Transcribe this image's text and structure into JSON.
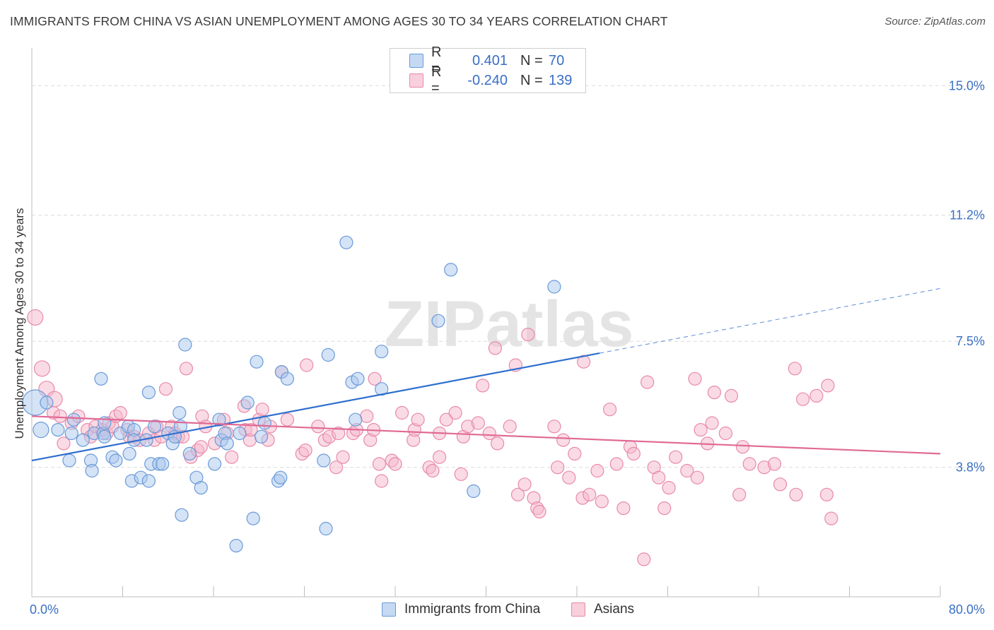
{
  "title": "IMMIGRANTS FROM CHINA VS ASIAN UNEMPLOYMENT AMONG AGES 30 TO 34 YEARS CORRELATION CHART",
  "source": "Source: ZipAtlas.com",
  "watermark": "ZIPatlas",
  "colors": {
    "blue_fill": "#a9c8ee",
    "blue_stroke": "#6a9ad8",
    "blue_line": "#2f6fce",
    "pink_fill": "#f5b8cb",
    "pink_stroke": "#e88aa8",
    "pink_line": "#e06a95",
    "axis_label": "#3a6fc4",
    "grid": "#dcdcdc"
  },
  "legend": {
    "rows": [
      {
        "r_label": "R =",
        "r_value": "0.401",
        "n_label": "N =",
        "n_value": "70",
        "color": "#a9c8ee",
        "border": "#6a9ad8"
      },
      {
        "r_label": "R =",
        "r_value": "-0.240",
        "n_label": "N =",
        "n_value": "139",
        "color": "#f5b8cb",
        "border": "#e88aa8"
      }
    ]
  },
  "bottom_legend": [
    {
      "label": "Immigrants from China",
      "color": "#a9c8ee",
      "border": "#6a9ad8"
    },
    {
      "label": "Asians",
      "color": "#f5b8cb",
      "border": "#e88aa8"
    }
  ],
  "chart_data": {
    "type": "scatter",
    "title": "IMMIGRANTS FROM CHINA VS ASIAN UNEMPLOYMENT AMONG AGES 30 TO 34 YEARS CORRELATION CHART",
    "xlabel": "",
    "ylabel": "Unemployment Among Ages 30 to 34 years",
    "xlim": [
      0,
      80
    ],
    "ylim": [
      0,
      15.9
    ],
    "x_tick_labels": [
      "0.0%",
      "80.0%"
    ],
    "y_ticks": [
      3.8,
      7.5,
      11.2,
      15.0
    ],
    "y_tick_labels": [
      "3.8%",
      "7.5%",
      "11.2%",
      "15.0%"
    ],
    "series": [
      {
        "name": "Immigrants from China",
        "r": 0.401,
        "n": 70,
        "trend": {
          "x0": 0,
          "y0": 4.0,
          "x1": 50,
          "y1": 7.15,
          "x_dash_end": 80,
          "y_dash_end": 9.05
        },
        "points": [
          [
            0.3,
            5.7,
            18
          ],
          [
            0.8,
            4.9,
            11
          ],
          [
            1.3,
            5.7,
            9
          ],
          [
            2.3,
            4.9,
            9
          ],
          [
            3.3,
            4.0,
            9
          ],
          [
            3.5,
            4.8,
            9
          ],
          [
            3.7,
            5.2,
            9
          ],
          [
            4.5,
            4.6,
            9
          ],
          [
            5.2,
            4.0,
            9
          ],
          [
            5.3,
            3.7,
            9
          ],
          [
            5.5,
            4.8,
            9
          ],
          [
            6.1,
            6.4,
            9
          ],
          [
            6.3,
            4.8,
            9
          ],
          [
            6.4,
            5.1,
            9
          ],
          [
            6.4,
            4.7,
            9
          ],
          [
            7.1,
            4.1,
            9
          ],
          [
            7.4,
            4.0,
            9
          ],
          [
            7.8,
            4.8,
            9
          ],
          [
            8.5,
            5.0,
            9
          ],
          [
            8.6,
            4.2,
            9
          ],
          [
            8.8,
            3.4,
            9
          ],
          [
            9.0,
            4.9,
            9
          ],
          [
            9.0,
            4.6,
            9
          ],
          [
            9.6,
            3.5,
            9
          ],
          [
            10.1,
            4.6,
            9
          ],
          [
            10.3,
            3.4,
            9
          ],
          [
            10.3,
            6.0,
            9
          ],
          [
            10.5,
            3.9,
            9
          ],
          [
            10.8,
            5.0,
            9
          ],
          [
            11.2,
            3.9,
            9
          ],
          [
            11.5,
            3.9,
            9
          ],
          [
            12.0,
            4.8,
            9
          ],
          [
            12.4,
            4.5,
            9
          ],
          [
            12.6,
            4.7,
            9
          ],
          [
            13.0,
            5.4,
            9
          ],
          [
            13.1,
            5.0,
            9
          ],
          [
            13.2,
            2.4,
            9
          ],
          [
            13.5,
            7.4,
            9
          ],
          [
            13.9,
            4.2,
            9
          ],
          [
            14.5,
            3.5,
            9
          ],
          [
            14.9,
            3.2,
            9
          ],
          [
            16.1,
            3.9,
            9
          ],
          [
            16.5,
            5.2,
            9
          ],
          [
            16.7,
            4.6,
            9
          ],
          [
            17.0,
            4.8,
            9
          ],
          [
            17.2,
            4.5,
            9
          ],
          [
            18.0,
            1.5,
            9
          ],
          [
            18.3,
            4.8,
            9
          ],
          [
            19.0,
            5.7,
            9
          ],
          [
            19.5,
            2.3,
            9
          ],
          [
            19.8,
            6.9,
            9
          ],
          [
            20.2,
            4.7,
            9
          ],
          [
            20.5,
            5.1,
            9
          ],
          [
            21.7,
            3.4,
            9
          ],
          [
            21.9,
            3.5,
            9
          ],
          [
            22.0,
            6.6,
            9
          ],
          [
            22.5,
            6.4,
            9
          ],
          [
            25.7,
            4.0,
            9
          ],
          [
            25.9,
            2.0,
            9
          ],
          [
            26.1,
            7.1,
            9
          ],
          [
            27.7,
            10.4,
            9
          ],
          [
            28.2,
            6.3,
            9
          ],
          [
            28.5,
            5.2,
            9
          ],
          [
            28.7,
            6.4,
            9
          ],
          [
            30.8,
            7.2,
            9
          ],
          [
            30.8,
            6.1,
            9
          ],
          [
            35.8,
            8.1,
            9
          ],
          [
            36.9,
            9.6,
            9
          ],
          [
            38.9,
            3.1,
            9
          ],
          [
            46.0,
            9.1,
            9
          ]
        ]
      },
      {
        "name": "Asians",
        "r": -0.24,
        "n": 139,
        "trend": {
          "x0": 0,
          "y0": 5.3,
          "x1": 80,
          "y1": 4.2
        },
        "points": [
          [
            0.3,
            8.2,
            11
          ],
          [
            0.9,
            6.7,
            11
          ],
          [
            1.3,
            6.1,
            11
          ],
          [
            1.9,
            5.4,
            9
          ],
          [
            2.0,
            5.8,
            11
          ],
          [
            2.5,
            5.3,
            9
          ],
          [
            2.8,
            4.5,
            9
          ],
          [
            3.5,
            5.1,
            9
          ],
          [
            4.1,
            5.3,
            9
          ],
          [
            4.9,
            4.9,
            9
          ],
          [
            5.2,
            4.7,
            9
          ],
          [
            5.6,
            5.0,
            9
          ],
          [
            6.2,
            4.9,
            9
          ],
          [
            6.6,
            4.8,
            9
          ],
          [
            6.8,
            5.1,
            9
          ],
          [
            7.1,
            5.0,
            9
          ],
          [
            7.4,
            5.3,
            9
          ],
          [
            7.8,
            5.4,
            9
          ],
          [
            8.4,
            4.9,
            9
          ],
          [
            8.6,
            4.7,
            9
          ],
          [
            9.0,
            4.7,
            9
          ],
          [
            9.5,
            4.6,
            9
          ],
          [
            10.3,
            4.8,
            9
          ],
          [
            10.8,
            4.6,
            9
          ],
          [
            11.0,
            5.0,
            9
          ],
          [
            11.4,
            4.7,
            9
          ],
          [
            11.8,
            6.1,
            9
          ],
          [
            12.3,
            5.0,
            9
          ],
          [
            12.6,
            4.8,
            9
          ],
          [
            12.9,
            4.7,
            9
          ],
          [
            13.3,
            4.7,
            9
          ],
          [
            13.6,
            6.7,
            9
          ],
          [
            14.0,
            4.1,
            9
          ],
          [
            14.6,
            4.3,
            9
          ],
          [
            14.9,
            4.4,
            9
          ],
          [
            15.0,
            5.3,
            9
          ],
          [
            15.3,
            5.0,
            9
          ],
          [
            16.1,
            4.5,
            9
          ],
          [
            16.9,
            5.2,
            9
          ],
          [
            17.2,
            4.8,
            9
          ],
          [
            17.6,
            4.1,
            9
          ],
          [
            18.7,
            5.6,
            9
          ],
          [
            18.8,
            4.9,
            9
          ],
          [
            19.2,
            4.6,
            9
          ],
          [
            19.3,
            4.9,
            9
          ],
          [
            20.0,
            5.2,
            9
          ],
          [
            20.3,
            5.5,
            9
          ],
          [
            20.8,
            4.6,
            9
          ],
          [
            21.0,
            5.0,
            9
          ],
          [
            22.0,
            6.6,
            9
          ],
          [
            22.5,
            5.2,
            9
          ],
          [
            23.8,
            4.2,
            9
          ],
          [
            24.1,
            4.3,
            9
          ],
          [
            24.2,
            6.8,
            9
          ],
          [
            25.2,
            5.0,
            9
          ],
          [
            25.8,
            4.6,
            9
          ],
          [
            26.2,
            4.7,
            9
          ],
          [
            26.8,
            3.8,
            9
          ],
          [
            27.0,
            4.8,
            9
          ],
          [
            27.4,
            4.1,
            9
          ],
          [
            28.3,
            4.8,
            9
          ],
          [
            28.6,
            4.9,
            9
          ],
          [
            29.5,
            5.3,
            9
          ],
          [
            29.8,
            4.6,
            9
          ],
          [
            30.1,
            4.9,
            9
          ],
          [
            30.2,
            6.4,
            9
          ],
          [
            30.6,
            3.9,
            9
          ],
          [
            30.8,
            3.4,
            9
          ],
          [
            31.7,
            4.0,
            9
          ],
          [
            32.0,
            3.9,
            9
          ],
          [
            32.6,
            5.4,
            9
          ],
          [
            33.6,
            4.6,
            9
          ],
          [
            33.7,
            4.9,
            9
          ],
          [
            34.0,
            5.2,
            9
          ],
          [
            35.0,
            3.8,
            9
          ],
          [
            35.3,
            3.7,
            9
          ],
          [
            35.9,
            4.8,
            9
          ],
          [
            35.9,
            4.1,
            9
          ],
          [
            36.5,
            5.2,
            9
          ],
          [
            37.3,
            5.4,
            9
          ],
          [
            37.8,
            3.6,
            9
          ],
          [
            38.0,
            4.7,
            9
          ],
          [
            38.4,
            5.0,
            9
          ],
          [
            39.3,
            5.1,
            9
          ],
          [
            39.7,
            6.2,
            9
          ],
          [
            40.3,
            4.8,
            9
          ],
          [
            40.8,
            7.3,
            9
          ],
          [
            41.0,
            4.5,
            9
          ],
          [
            42.1,
            5.0,
            9
          ],
          [
            42.6,
            6.8,
            9
          ],
          [
            42.8,
            3.0,
            9
          ],
          [
            43.4,
            3.3,
            9
          ],
          [
            43.7,
            7.7,
            9
          ],
          [
            44.2,
            2.9,
            9
          ],
          [
            44.5,
            2.6,
            9
          ],
          [
            44.7,
            2.5,
            9
          ],
          [
            46.0,
            5.0,
            9
          ],
          [
            46.3,
            3.8,
            9
          ],
          [
            46.8,
            4.6,
            9
          ],
          [
            47.3,
            3.5,
            9
          ],
          [
            47.8,
            4.2,
            9
          ],
          [
            48.5,
            2.9,
            9
          ],
          [
            48.6,
            6.9,
            9
          ],
          [
            49.1,
            3.0,
            9
          ],
          [
            49.8,
            3.7,
            9
          ],
          [
            50.2,
            2.8,
            9
          ],
          [
            50.9,
            5.5,
            9
          ],
          [
            51.5,
            3.9,
            9
          ],
          [
            52.1,
            2.6,
            9
          ],
          [
            52.7,
            4.4,
            9
          ],
          [
            53.0,
            4.2,
            9
          ],
          [
            53.9,
            1.1,
            9
          ],
          [
            54.2,
            6.3,
            9
          ],
          [
            54.8,
            3.8,
            9
          ],
          [
            55.2,
            3.5,
            9
          ],
          [
            55.7,
            2.6,
            9
          ],
          [
            56.1,
            3.2,
            9
          ],
          [
            56.7,
            4.1,
            9
          ],
          [
            57.7,
            3.7,
            9
          ],
          [
            58.4,
            6.4,
            9
          ],
          [
            58.6,
            3.5,
            9
          ],
          [
            58.9,
            4.9,
            9
          ],
          [
            59.5,
            4.5,
            9
          ],
          [
            59.9,
            5.1,
            9
          ],
          [
            60.1,
            6.0,
            9
          ],
          [
            61.1,
            4.8,
            9
          ],
          [
            61.6,
            5.9,
            9
          ],
          [
            62.3,
            3.0,
            9
          ],
          [
            62.6,
            4.4,
            9
          ],
          [
            63.2,
            3.9,
            9
          ],
          [
            64.5,
            3.8,
            9
          ],
          [
            65.4,
            3.9,
            9
          ],
          [
            65.9,
            3.3,
            9
          ],
          [
            67.2,
            6.7,
            9
          ],
          [
            67.3,
            3.0,
            9
          ],
          [
            67.9,
            5.8,
            9
          ],
          [
            69.1,
            5.9,
            9
          ],
          [
            70.0,
            3.0,
            9
          ],
          [
            70.1,
            6.2,
            9
          ],
          [
            70.4,
            2.3,
            9
          ]
        ]
      }
    ]
  }
}
